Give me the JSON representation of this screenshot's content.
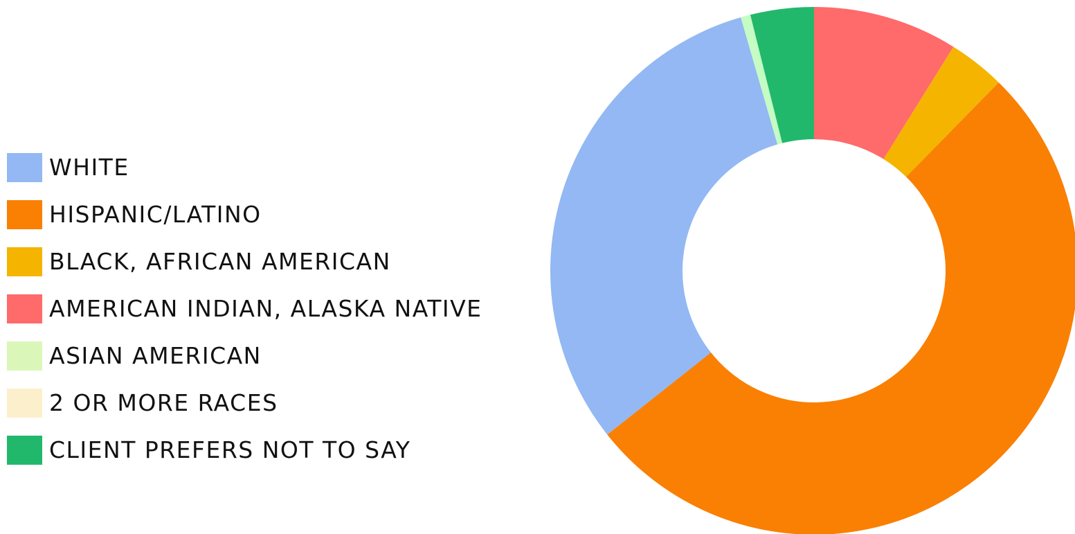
{
  "chart_data": {
    "type": "pie",
    "variant": "donut",
    "legend_position": "left",
    "categories": [
      "WHITE",
      "HISPANIC/LATINO",
      "BLACK, AFRICAN AMERICAN",
      "AMERICAN INDIAN, ALASKA NATIVE",
      "ASIAN AMERICAN",
      "2 OR MORE RACES",
      "CLIENT PREFERS NOT TO SAY"
    ],
    "values": [
      31.3,
      52.2,
      3.5,
      8.9,
      0.6,
      0.0,
      3.9
    ],
    "unit": "percent",
    "colors": [
      "#93b8f3",
      "#f98003",
      "#f5b400",
      "#ff6a6a",
      "#c4fcc3",
      "#fcf0cc",
      "#22b86c"
    ],
    "legend_colors": [
      "#93b8f3",
      "#f98003",
      "#f5b400",
      "#ff6a6a",
      "#daf7b9",
      "#fcf0cc",
      "#22b86c"
    ],
    "draw_order": [
      3,
      2,
      1,
      0,
      4,
      5,
      6
    ],
    "start_angle_deg": 0,
    "direction": "clockwise"
  }
}
